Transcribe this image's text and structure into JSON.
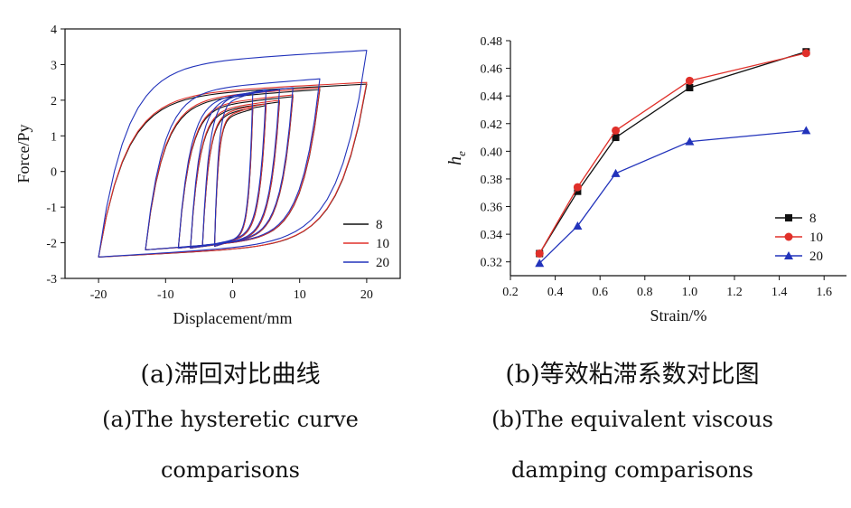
{
  "chart_data": [
    {
      "type": "line",
      "panel": "a",
      "xlabel": "Displacement/mm",
      "ylabel": "Force/Py",
      "xlim": [
        -25,
        25
      ],
      "ylim": [
        -3,
        4
      ],
      "x_ticks": [
        -20,
        -10,
        0,
        10,
        20
      ],
      "y_ticks": [
        -3,
        -2,
        -1,
        0,
        1,
        2,
        3,
        4
      ],
      "legend_position": "bottom-right",
      "caption_cn": "(a)滞回对比曲线",
      "caption_en_1": "(a)The hysteretic curve",
      "caption_en_2": "comparisons",
      "loop_amplitudes": [
        3,
        5,
        7,
        9,
        13,
        20
      ],
      "series": [
        {
          "name": "8",
          "color": "#111111",
          "loops": [
            {
              "xmax": 3,
              "fmin": -2.1,
              "fmax": 1.75
            },
            {
              "xmax": 5,
              "fmin": -2.1,
              "fmax": 1.85
            },
            {
              "xmax": 7,
              "fmin": -2.15,
              "fmax": 1.95
            },
            {
              "xmax": 9,
              "fmin": -2.15,
              "fmax": 2.1
            },
            {
              "xmax": 13,
              "fmin": -2.2,
              "fmax": 2.3
            },
            {
              "xmax": 20,
              "fmin": -2.4,
              "fmax": 2.45
            }
          ]
        },
        {
          "name": "10",
          "color": "#e0302a",
          "loops": [
            {
              "xmax": 3,
              "fmin": -2.1,
              "fmax": 1.8
            },
            {
              "xmax": 5,
              "fmin": -2.1,
              "fmax": 1.9
            },
            {
              "xmax": 7,
              "fmin": -2.15,
              "fmax": 2.0
            },
            {
              "xmax": 9,
              "fmin": -2.15,
              "fmax": 2.15
            },
            {
              "xmax": 13,
              "fmin": -2.2,
              "fmax": 2.35
            },
            {
              "xmax": 20,
              "fmin": -2.4,
              "fmax": 2.5
            }
          ]
        },
        {
          "name": "20",
          "color": "#2233bb",
          "loops": [
            {
              "xmax": 3,
              "fmin": -2.1,
              "fmax": 2.2
            },
            {
              "xmax": 5,
              "fmin": -2.1,
              "fmax": 2.3
            },
            {
              "xmax": 7,
              "fmin": -2.15,
              "fmax": 2.3
            },
            {
              "xmax": 9,
              "fmin": -2.15,
              "fmax": 2.35
            },
            {
              "xmax": 13,
              "fmin": -2.2,
              "fmax": 2.6
            },
            {
              "xmax": 20,
              "fmin": -2.4,
              "fmax": 3.4
            }
          ]
        }
      ]
    },
    {
      "type": "line",
      "panel": "b",
      "xlabel": "Strain/%",
      "ylabel": "he",
      "ylabel_main": "h",
      "ylabel_sub": "e",
      "xlim": [
        0.2,
        1.7
      ],
      "ylim": [
        0.31,
        0.48
      ],
      "x_ticks": [
        0.2,
        0.4,
        0.6,
        0.8,
        1.0,
        1.2,
        1.4,
        1.6
      ],
      "x_tick_labels": [
        "0.2",
        "0.4",
        "0.6",
        "0.8",
        "1.0",
        "1.2",
        "1.4",
        "1.6"
      ],
      "y_ticks": [
        0.32,
        0.34,
        0.36,
        0.38,
        0.4,
        0.42,
        0.44,
        0.46,
        0.48
      ],
      "y_tick_labels": [
        "0.32",
        "0.34",
        "0.36",
        "0.38",
        "0.40",
        "0.42",
        "0.44",
        "0.46",
        "0.48"
      ],
      "legend_position": "bottom-right",
      "caption_cn": "(b)等效粘滞系数对比图",
      "caption_en_1": "(b)The equivalent viscous",
      "caption_en_2": "damping comparisons",
      "x": [
        0.33,
        0.5,
        0.67,
        1.0,
        1.52
      ],
      "series": [
        {
          "name": "8",
          "color": "#111111",
          "marker": "square",
          "values": [
            0.326,
            0.371,
            0.41,
            0.446,
            0.472
          ]
        },
        {
          "name": "10",
          "color": "#e0302a",
          "marker": "circle",
          "values": [
            0.326,
            0.374,
            0.415,
            0.451,
            0.471
          ]
        },
        {
          "name": "20",
          "color": "#2233bb",
          "marker": "triangle",
          "values": [
            0.319,
            0.346,
            0.384,
            0.407,
            0.415
          ]
        }
      ]
    }
  ]
}
